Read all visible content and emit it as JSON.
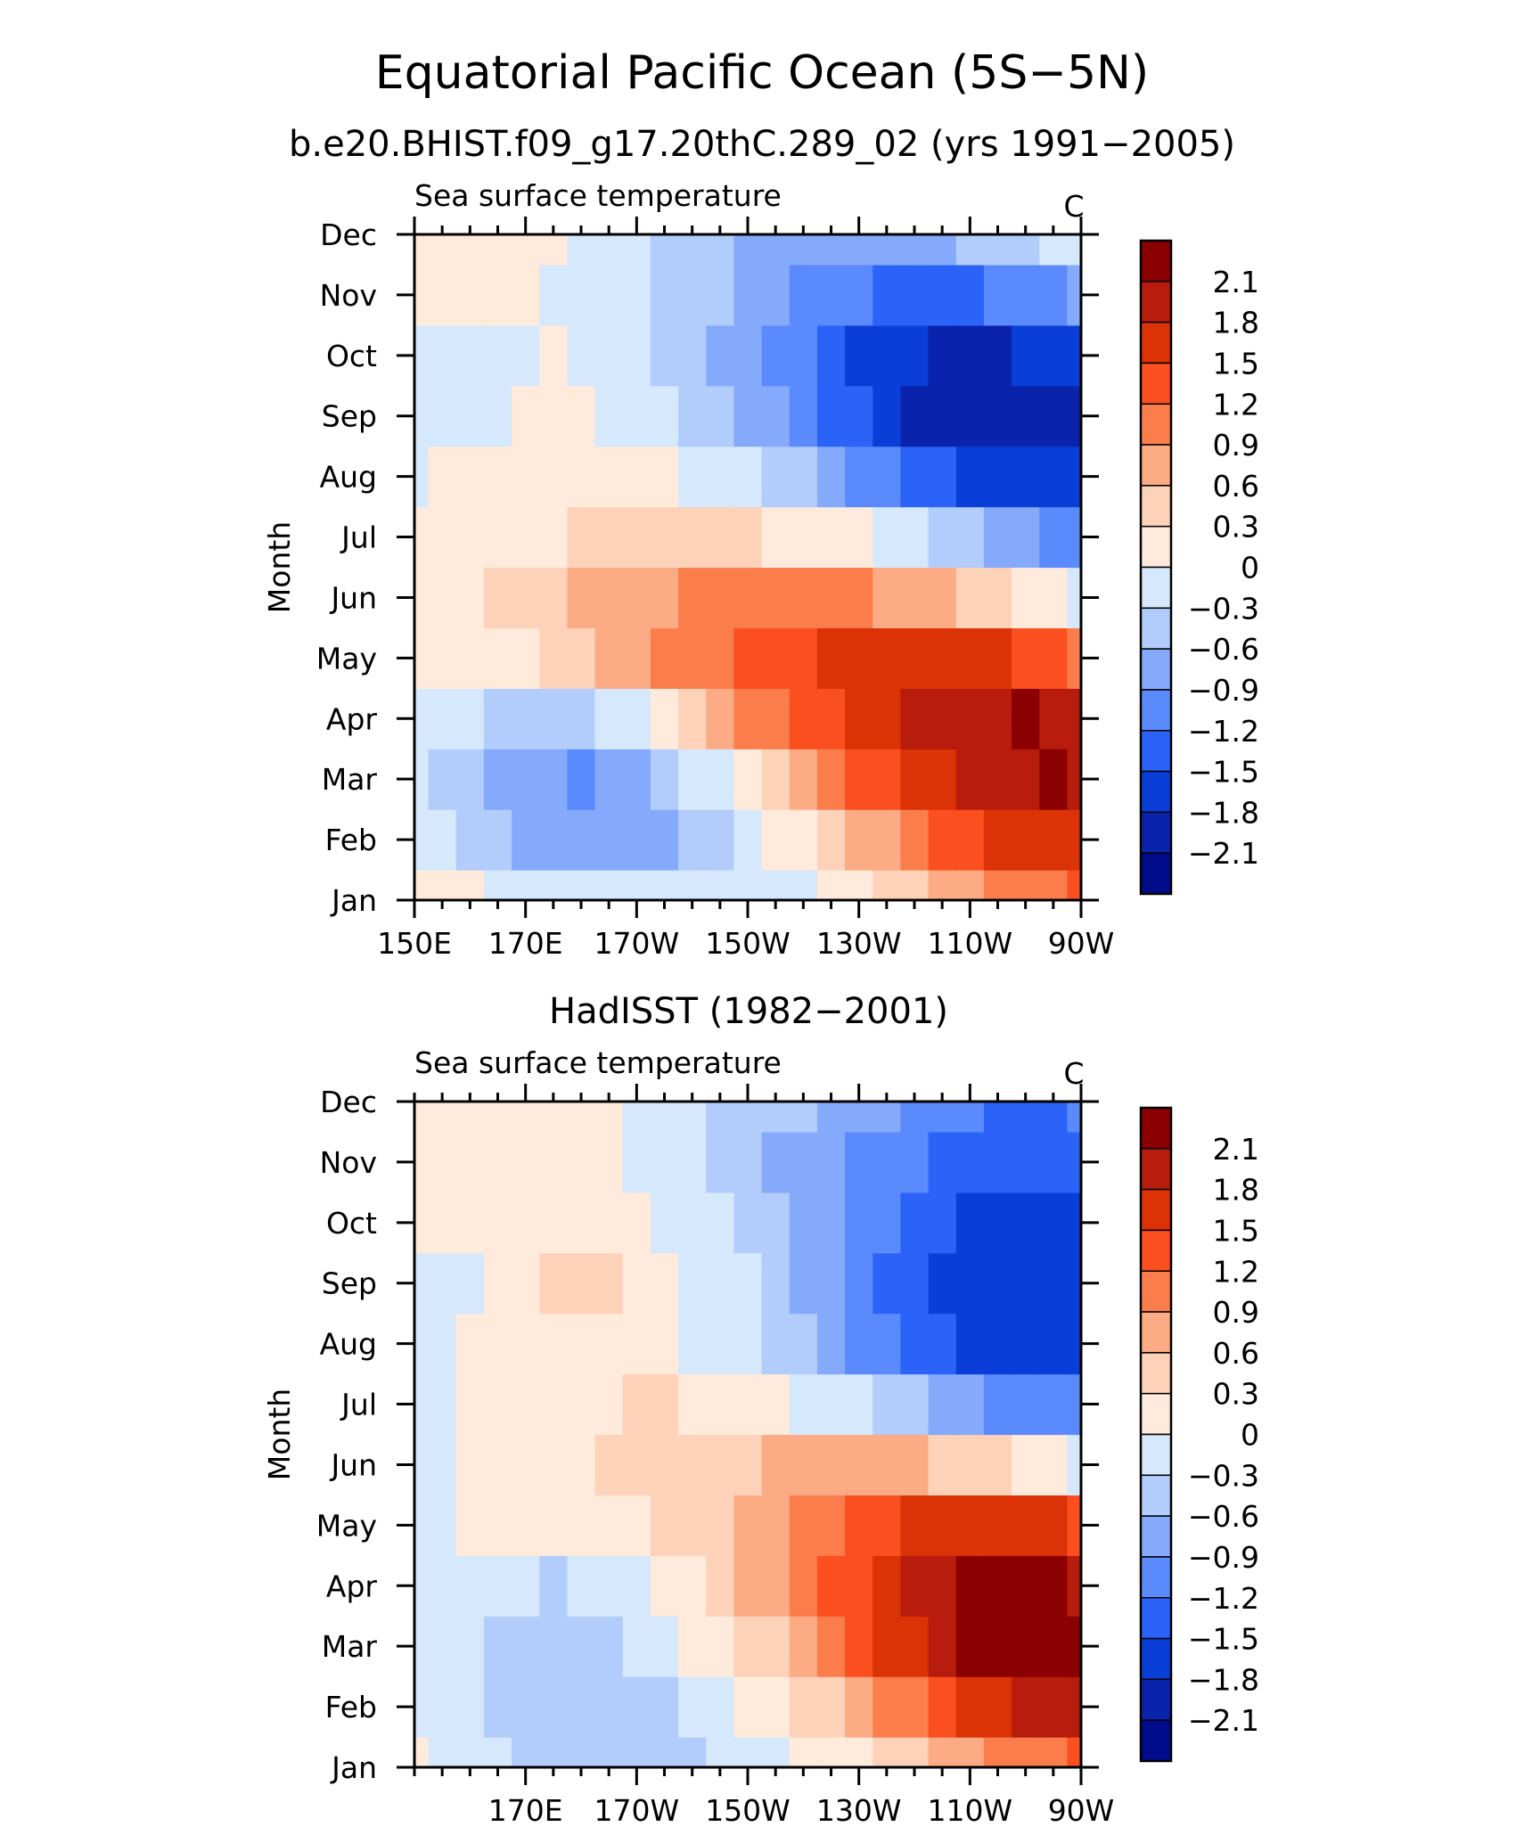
{
  "title": "Equatorial Pacific Ocean (5S−5N)",
  "subtitle": "b.e20.BHIST.f09_g17.20thC.289_02 (yrs 1991−2005)",
  "colorbar": {
    "labels": [
      "2.1",
      "1.8",
      "1.5",
      "1.2",
      "0.9",
      "0.6",
      "0.3",
      "0",
      "−0.3",
      "−0.6",
      "−0.9",
      "−1.2",
      "−1.5",
      "−1.8",
      "−2.1"
    ],
    "colors": [
      "#8b0000",
      "#b71c0c",
      "#db3206",
      "#fb4f1f",
      "#fc7d4c",
      "#fcab85",
      "#fdd2b8",
      "#ffeadb",
      "#d6e8fb",
      "#b2ccfb",
      "#86aafb",
      "#5a8afb",
      "#2b63f9",
      "#0a3ed8",
      "#0a23ac",
      "#000c8b"
    ]
  },
  "chart_data": [
    {
      "type": "heatmap",
      "header": "",
      "title": "Sea surface temperature",
      "units": "C",
      "ylabel": "Month",
      "xlabel": "",
      "x": [
        150,
        155,
        160,
        165,
        170,
        175,
        180,
        185,
        190,
        195,
        200,
        205,
        210,
        215,
        220,
        225,
        230,
        235,
        240,
        245,
        250,
        255,
        260,
        265,
        270
      ],
      "xlim": [
        150,
        270
      ],
      "x_ticks": [
        150,
        170,
        190,
        210,
        230,
        250,
        270
      ],
      "x_tick_labels": [
        "150E",
        "170E",
        "170W",
        "150W",
        "130W",
        "110W",
        "90W"
      ],
      "y_tick_labels": [
        "Jan",
        "Feb",
        "Mar",
        "Apr",
        "May",
        "Jun",
        "Jul",
        "Aug",
        "Sep",
        "Oct",
        "Nov",
        "Dec"
      ],
      "levels": [
        -2.1,
        -1.8,
        -1.5,
        -1.2,
        -0.9,
        -0.6,
        -0.3,
        0,
        0.3,
        0.6,
        0.9,
        1.2,
        1.5,
        1.8,
        2.1
      ],
      "values": [
        [
          0.1,
          0.05,
          0,
          -0.05,
          -0.1,
          -0.15,
          -0.2,
          -0.25,
          -0.25,
          -0.3,
          -0.3,
          -0.3,
          -0.25,
          -0.2,
          -0.1,
          0,
          0.15,
          0.3,
          0.45,
          0.6,
          0.75,
          0.9,
          1.0,
          1.1,
          1.2
        ],
        [
          -0.15,
          -0.3,
          -0.45,
          -0.6,
          -0.75,
          -0.85,
          -0.9,
          -0.85,
          -0.8,
          -0.65,
          -0.5,
          -0.35,
          -0.2,
          0,
          0.2,
          0.4,
          0.6,
          0.8,
          1.0,
          1.2,
          1.35,
          1.5,
          1.6,
          1.7,
          1.75
        ],
        [
          -0.2,
          -0.35,
          -0.5,
          -0.65,
          -0.8,
          -0.9,
          -0.95,
          -0.85,
          -0.7,
          -0.5,
          -0.3,
          -0.1,
          0.15,
          0.4,
          0.7,
          0.95,
          1.2,
          1.4,
          1.6,
          1.75,
          1.85,
          1.95,
          2.05,
          2.1,
          2.05
        ],
        [
          -0.1,
          -0.2,
          -0.3,
          -0.4,
          -0.5,
          -0.5,
          -0.45,
          -0.3,
          -0.1,
          0.15,
          0.4,
          0.65,
          0.9,
          1.1,
          1.3,
          1.45,
          1.6,
          1.75,
          1.85,
          1.95,
          2.0,
          2.05,
          2.1,
          2.05,
          1.9
        ],
        [
          0.05,
          0.1,
          0.15,
          0.2,
          0.25,
          0.35,
          0.45,
          0.6,
          0.75,
          0.9,
          1.0,
          1.1,
          1.2,
          1.3,
          1.4,
          1.5,
          1.55,
          1.6,
          1.6,
          1.6,
          1.6,
          1.55,
          1.45,
          1.3,
          1.1
        ],
        [
          0.05,
          0.1,
          0.2,
          0.3,
          0.4,
          0.5,
          0.6,
          0.7,
          0.8,
          0.85,
          0.9,
          0.95,
          1.0,
          1.0,
          1.0,
          0.95,
          0.9,
          0.8,
          0.7,
          0.6,
          0.45,
          0.3,
          0.15,
          0,
          -0.15
        ],
        [
          0,
          0.05,
          0.1,
          0.15,
          0.2,
          0.25,
          0.3,
          0.35,
          0.4,
          0.4,
          0.4,
          0.35,
          0.3,
          0.25,
          0.2,
          0.1,
          0,
          -0.1,
          -0.2,
          -0.35,
          -0.5,
          -0.65,
          -0.8,
          -0.95,
          -1.05
        ],
        [
          -0.05,
          0,
          0.05,
          0.05,
          0.1,
          0.1,
          0.1,
          0.1,
          0.05,
          0,
          -0.05,
          -0.15,
          -0.3,
          -0.45,
          -0.6,
          -0.8,
          -1.0,
          -1.2,
          -1.35,
          -1.5,
          -1.6,
          -1.7,
          -1.75,
          -1.8,
          -1.8
        ],
        [
          -0.15,
          -0.15,
          -0.1,
          -0.05,
          0,
          0.05,
          0,
          -0.05,
          -0.15,
          -0.25,
          -0.4,
          -0.55,
          -0.7,
          -0.9,
          -1.1,
          -1.3,
          -1.5,
          -1.7,
          -1.85,
          -1.95,
          -2.0,
          -2.05,
          -2.05,
          -2.0,
          -1.95
        ],
        [
          -0.2,
          -0.25,
          -0.2,
          -0.1,
          -0.05,
          0,
          -0.05,
          -0.15,
          -0.25,
          -0.35,
          -0.5,
          -0.65,
          -0.8,
          -0.95,
          -1.15,
          -1.35,
          -1.55,
          -1.7,
          -1.8,
          -1.85,
          -1.85,
          -1.85,
          -1.8,
          -1.75,
          -1.7
        ],
        [
          0.05,
          0.05,
          0.05,
          0.05,
          0,
          -0.05,
          -0.1,
          -0.15,
          -0.25,
          -0.35,
          -0.45,
          -0.55,
          -0.7,
          -0.85,
          -1.0,
          -1.1,
          -1.2,
          -1.25,
          -1.3,
          -1.3,
          -1.25,
          -1.2,
          -1.1,
          -1.0,
          -0.9
        ],
        [
          0.1,
          0.1,
          0.1,
          0.1,
          0.05,
          0,
          -0.05,
          -0.15,
          -0.25,
          -0.35,
          -0.45,
          -0.55,
          -0.65,
          -0.75,
          -0.85,
          -0.9,
          -0.9,
          -0.85,
          -0.8,
          -0.7,
          -0.6,
          -0.5,
          -0.4,
          -0.3,
          -0.2
        ]
      ]
    },
    {
      "type": "heatmap",
      "header": "HadISST (1982−2001)",
      "title": "Sea surface temperature",
      "units": "C",
      "ylabel": "Month",
      "xlabel": "",
      "x": [
        150,
        155,
        160,
        165,
        170,
        175,
        180,
        185,
        190,
        195,
        200,
        205,
        210,
        215,
        220,
        225,
        230,
        235,
        240,
        245,
        250,
        255,
        260,
        265,
        270
      ],
      "xlim": [
        150,
        270
      ],
      "x_ticks": [
        170,
        190,
        210,
        230,
        250,
        270
      ],
      "x_tick_labels": [
        "170E",
        "170W",
        "150W",
        "130W",
        "110W",
        "90W"
      ],
      "y_tick_labels": [
        "Jan",
        "Feb",
        "Mar",
        "Apr",
        "May",
        "Jun",
        "Jul",
        "Aug",
        "Sep",
        "Oct",
        "Nov",
        "Dec"
      ],
      "levels": [
        -2.1,
        -1.8,
        -1.5,
        -1.2,
        -0.9,
        -0.6,
        -0.3,
        0,
        0.3,
        0.6,
        0.9,
        1.2,
        1.5,
        1.8,
        2.1
      ],
      "values": [
        [
          0.1,
          -0.05,
          -0.15,
          -0.25,
          -0.35,
          -0.45,
          -0.5,
          -0.5,
          -0.5,
          -0.45,
          -0.4,
          -0.3,
          -0.2,
          -0.1,
          0,
          0.1,
          0.2,
          0.35,
          0.5,
          0.65,
          0.8,
          0.9,
          1.0,
          1.1,
          1.2
        ],
        [
          -0.05,
          -0.15,
          -0.25,
          -0.35,
          -0.45,
          -0.55,
          -0.55,
          -0.5,
          -0.45,
          -0.35,
          -0.25,
          -0.1,
          0.05,
          0.2,
          0.35,
          0.55,
          0.75,
          0.95,
          1.15,
          1.35,
          1.5,
          1.65,
          1.8,
          1.9,
          1.95
        ],
        [
          -0.1,
          -0.2,
          -0.3,
          -0.4,
          -0.5,
          -0.55,
          -0.5,
          -0.4,
          -0.3,
          -0.15,
          0,
          0.15,
          0.35,
          0.55,
          0.8,
          1.05,
          1.3,
          1.55,
          1.75,
          1.95,
          2.1,
          2.2,
          2.25,
          2.25,
          2.2
        ],
        [
          -0.05,
          -0.1,
          -0.15,
          -0.2,
          -0.3,
          -0.35,
          -0.3,
          -0.2,
          -0.05,
          0.1,
          0.25,
          0.4,
          0.6,
          0.8,
          1.0,
          1.25,
          1.45,
          1.65,
          1.85,
          2.0,
          2.1,
          2.2,
          2.2,
          2.15,
          2.05
        ],
        [
          -0.05,
          -0.05,
          0,
          0.05,
          0.1,
          0.1,
          0.15,
          0.2,
          0.25,
          0.35,
          0.45,
          0.55,
          0.65,
          0.8,
          0.95,
          1.1,
          1.25,
          1.4,
          1.55,
          1.65,
          1.7,
          1.7,
          1.65,
          1.55,
          1.4
        ],
        [
          -0.15,
          -0.05,
          0.05,
          0.1,
          0.15,
          0.2,
          0.25,
          0.3,
          0.35,
          0.4,
          0.45,
          0.5,
          0.55,
          0.6,
          0.65,
          0.7,
          0.7,
          0.65,
          0.6,
          0.5,
          0.4,
          0.3,
          0.15,
          0,
          -0.1
        ],
        [
          -0.2,
          -0.1,
          0.05,
          0.1,
          0.15,
          0.2,
          0.2,
          0.25,
          0.3,
          0.3,
          0.25,
          0.2,
          0.1,
          0,
          -0.1,
          -0.2,
          -0.3,
          -0.45,
          -0.6,
          -0.75,
          -0.9,
          -1.05,
          -1.15,
          -1.2,
          -1.2
        ],
        [
          -0.3,
          -0.15,
          0,
          0.1,
          0.15,
          0.2,
          0.2,
          0.15,
          0.1,
          0.05,
          -0.05,
          -0.15,
          -0.25,
          -0.4,
          -0.55,
          -0.75,
          -0.95,
          -1.15,
          -1.35,
          -1.5,
          -1.6,
          -1.7,
          -1.75,
          -1.75,
          -1.7
        ],
        [
          -0.2,
          -0.15,
          -0.05,
          0.05,
          0.15,
          0.3,
          0.4,
          0.3,
          0.15,
          0.05,
          -0.05,
          -0.15,
          -0.3,
          -0.45,
          -0.65,
          -0.85,
          -1.05,
          -1.25,
          -1.4,
          -1.55,
          -1.65,
          -1.7,
          -1.75,
          -1.75,
          -1.7
        ],
        [
          0.05,
          0.05,
          0.05,
          0.1,
          0.1,
          0.15,
          0.15,
          0.1,
          0,
          -0.1,
          -0.2,
          -0.3,
          -0.45,
          -0.6,
          -0.75,
          -0.9,
          -1.05,
          -1.2,
          -1.35,
          -1.45,
          -1.55,
          -1.6,
          -1.6,
          -1.6,
          -1.6
        ],
        [
          0.1,
          0.1,
          0.1,
          0.1,
          0.1,
          0.1,
          0.05,
          0,
          -0.1,
          -0.2,
          -0.3,
          -0.4,
          -0.55,
          -0.65,
          -0.75,
          -0.85,
          -0.95,
          -1.05,
          -1.15,
          -1.25,
          -1.3,
          -1.35,
          -1.35,
          -1.3,
          -1.25
        ],
        [
          0.1,
          0.1,
          0.1,
          0.1,
          0.1,
          0.1,
          0.05,
          0,
          -0.1,
          -0.2,
          -0.3,
          -0.4,
          -0.5,
          -0.55,
          -0.6,
          -0.7,
          -0.8,
          -0.9,
          -1.0,
          -1.1,
          -1.2,
          -1.3,
          -1.3,
          -1.25,
          -1.1
        ]
      ]
    }
  ]
}
